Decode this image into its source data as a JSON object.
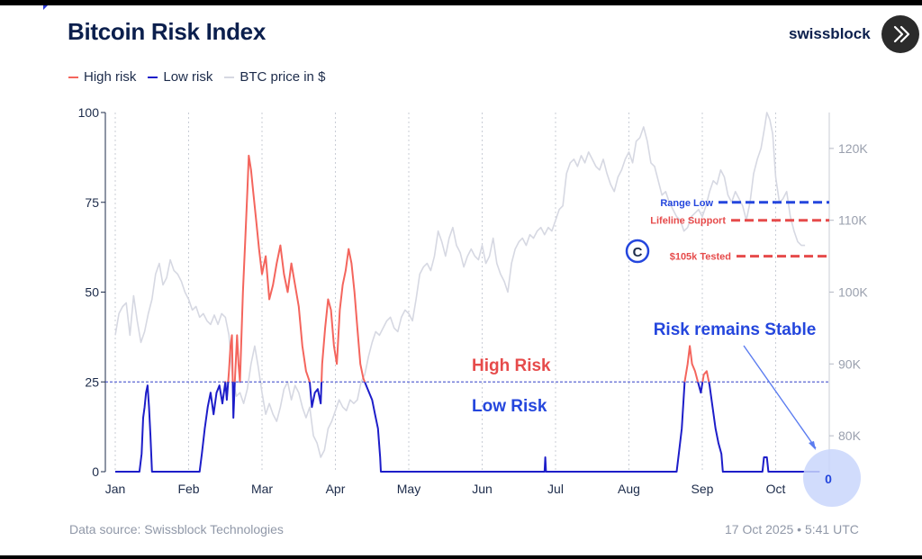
{
  "header": {
    "title": "Bitcoin Risk Index",
    "brand": "swissblock"
  },
  "footer": {
    "source": "Data source: Swissblock Technologies",
    "timestamp": "17 Oct 2025 • 5:41 UTC"
  },
  "colors": {
    "high": "#f4655d",
    "low": "#1d1dc9",
    "price": "#d6d8e2",
    "annotation_blue": "#2446dd",
    "annotation_red": "#e64b4b"
  },
  "chart_data": {
    "type": "line",
    "title": "Bitcoin Risk Index",
    "legend": [
      "High risk",
      "Low risk",
      "BTC price in $"
    ],
    "legend_position": "top-left",
    "x": {
      "ticks": [
        "Jan",
        "Feb",
        "Mar",
        "Apr",
        "May",
        "Jun",
        "Jul",
        "Aug",
        "Sep",
        "Oct"
      ],
      "range_months": [
        0,
        9.6
      ]
    },
    "y_left": {
      "ticks": [
        0,
        25,
        50,
        75,
        100
      ],
      "range": [
        0,
        100
      ]
    },
    "y_right": {
      "ticks": [
        "80K",
        "90K",
        "100K",
        "110K",
        "120K"
      ],
      "range": [
        75000,
        125000
      ]
    },
    "threshold": 25,
    "region_labels": {
      "high": "High Risk",
      "low": "Low Risk"
    },
    "price_levels": [
      {
        "label": "Range Low",
        "value": 112500,
        "color": "blue"
      },
      {
        "label": "Lifeline Support",
        "value": 110000,
        "color": "red"
      },
      {
        "label": "$105k Tested",
        "value": 105000,
        "color": "red"
      }
    ],
    "annotation": {
      "text": "Risk remains Stable",
      "value_label": "0"
    },
    "risk": [
      [
        0.0,
        0
      ],
      [
        0.33,
        0
      ],
      [
        0.36,
        5
      ],
      [
        0.38,
        15
      ],
      [
        0.4,
        18
      ],
      [
        0.42,
        22
      ],
      [
        0.44,
        24
      ],
      [
        0.46,
        18
      ],
      [
        0.48,
        10
      ],
      [
        0.5,
        0
      ],
      [
        0.95,
        0
      ],
      [
        1.15,
        0
      ],
      [
        1.18,
        5
      ],
      [
        1.22,
        12
      ],
      [
        1.26,
        18
      ],
      [
        1.3,
        22
      ],
      [
        1.34,
        16
      ],
      [
        1.38,
        22
      ],
      [
        1.42,
        24
      ],
      [
        1.46,
        19
      ],
      [
        1.5,
        25
      ],
      [
        1.52,
        20
      ],
      [
        1.55,
        28
      ],
      [
        1.57,
        35
      ],
      [
        1.59,
        38
      ],
      [
        1.61,
        15
      ],
      [
        1.63,
        25
      ],
      [
        1.66,
        38
      ],
      [
        1.68,
        30
      ],
      [
        1.7,
        25
      ],
      [
        1.74,
        50
      ],
      [
        1.77,
        64
      ],
      [
        1.8,
        78
      ],
      [
        1.82,
        88
      ],
      [
        1.85,
        84
      ],
      [
        1.88,
        78
      ],
      [
        1.92,
        70
      ],
      [
        1.96,
        62
      ],
      [
        2.0,
        55
      ],
      [
        2.05,
        60
      ],
      [
        2.1,
        48
      ],
      [
        2.15,
        52
      ],
      [
        2.2,
        58
      ],
      [
        2.25,
        63
      ],
      [
        2.3,
        55
      ],
      [
        2.35,
        50
      ],
      [
        2.4,
        58
      ],
      [
        2.45,
        52
      ],
      [
        2.5,
        46
      ],
      [
        2.55,
        35
      ],
      [
        2.6,
        28
      ],
      [
        2.65,
        25
      ],
      [
        2.68,
        18
      ],
      [
        2.72,
        22
      ],
      [
        2.76,
        23
      ],
      [
        2.8,
        19
      ],
      [
        2.82,
        30
      ],
      [
        2.86,
        40
      ],
      [
        2.9,
        48
      ],
      [
        2.94,
        45
      ],
      [
        2.98,
        35
      ],
      [
        3.02,
        30
      ],
      [
        3.06,
        45
      ],
      [
        3.1,
        52
      ],
      [
        3.14,
        56
      ],
      [
        3.18,
        62
      ],
      [
        3.22,
        58
      ],
      [
        3.26,
        50
      ],
      [
        3.3,
        40
      ],
      [
        3.34,
        30
      ],
      [
        3.38,
        26
      ],
      [
        3.42,
        24
      ],
      [
        3.46,
        22
      ],
      [
        3.5,
        20
      ],
      [
        3.54,
        16
      ],
      [
        3.58,
        12
      ],
      [
        3.61,
        4
      ],
      [
        3.62,
        0
      ],
      [
        5.85,
        0
      ],
      [
        5.86,
        4
      ],
      [
        5.87,
        0
      ],
      [
        7.65,
        0
      ],
      [
        7.68,
        5
      ],
      [
        7.72,
        12
      ],
      [
        7.76,
        25
      ],
      [
        7.8,
        30
      ],
      [
        7.83,
        35
      ],
      [
        7.86,
        30
      ],
      [
        7.9,
        28
      ],
      [
        7.94,
        25
      ],
      [
        7.98,
        22
      ],
      [
        8.02,
        27
      ],
      [
        8.06,
        28
      ],
      [
        8.1,
        24
      ],
      [
        8.14,
        18
      ],
      [
        8.18,
        12
      ],
      [
        8.22,
        8
      ],
      [
        8.26,
        5
      ],
      [
        8.28,
        0
      ],
      [
        8.82,
        0
      ],
      [
        8.84,
        4
      ],
      [
        8.88,
        4
      ],
      [
        8.9,
        0
      ],
      [
        9.6,
        0
      ]
    ],
    "btc_price": [
      [
        0.0,
        94000
      ],
      [
        0.05,
        97000
      ],
      [
        0.1,
        98000
      ],
      [
        0.15,
        98500
      ],
      [
        0.2,
        94000
      ],
      [
        0.25,
        99500
      ],
      [
        0.3,
        96000
      ],
      [
        0.35,
        93000
      ],
      [
        0.4,
        94500
      ],
      [
        0.45,
        97000
      ],
      [
        0.5,
        99000
      ],
      [
        0.55,
        102500
      ],
      [
        0.6,
        104000
      ],
      [
        0.65,
        101000
      ],
      [
        0.7,
        102000
      ],
      [
        0.75,
        104500
      ],
      [
        0.8,
        103000
      ],
      [
        0.85,
        102500
      ],
      [
        0.9,
        101500
      ],
      [
        0.95,
        100000
      ],
      [
        1.0,
        99000
      ],
      [
        1.05,
        97500
      ],
      [
        1.1,
        98000
      ],
      [
        1.15,
        96500
      ],
      [
        1.2,
        97000
      ],
      [
        1.25,
        96000
      ],
      [
        1.3,
        95500
      ],
      [
        1.35,
        96800
      ],
      [
        1.4,
        95500
      ],
      [
        1.45,
        97000
      ],
      [
        1.5,
        96500
      ],
      [
        1.55,
        94000
      ],
      [
        1.6,
        88000
      ],
      [
        1.65,
        85500
      ],
      [
        1.7,
        86000
      ],
      [
        1.75,
        84500
      ],
      [
        1.8,
        86500
      ],
      [
        1.85,
        90000
      ],
      [
        1.9,
        92500
      ],
      [
        1.95,
        89500
      ],
      [
        2.0,
        86000
      ],
      [
        2.05,
        83000
      ],
      [
        2.1,
        84500
      ],
      [
        2.15,
        83000
      ],
      [
        2.2,
        82000
      ],
      [
        2.25,
        84000
      ],
      [
        2.3,
        86500
      ],
      [
        2.35,
        87500
      ],
      [
        2.4,
        85000
      ],
      [
        2.45,
        87000
      ],
      [
        2.5,
        86000
      ],
      [
        2.55,
        84000
      ],
      [
        2.6,
        82500
      ],
      [
        2.65,
        84000
      ],
      [
        2.7,
        80000
      ],
      [
        2.75,
        79000
      ],
      [
        2.8,
        77000
      ],
      [
        2.85,
        78000
      ],
      [
        2.9,
        81000
      ],
      [
        2.95,
        82000
      ],
      [
        3.0,
        83500
      ],
      [
        3.05,
        85000
      ],
      [
        3.1,
        84000
      ],
      [
        3.15,
        83500
      ],
      [
        3.2,
        85000
      ],
      [
        3.25,
        84500
      ],
      [
        3.3,
        85000
      ],
      [
        3.35,
        87500
      ],
      [
        3.4,
        88500
      ],
      [
        3.45,
        91000
      ],
      [
        3.5,
        93000
      ],
      [
        3.55,
        94500
      ],
      [
        3.6,
        94000
      ],
      [
        3.65,
        95000
      ],
      [
        3.7,
        96000
      ],
      [
        3.75,
        96500
      ],
      [
        3.8,
        95000
      ],
      [
        3.85,
        94500
      ],
      [
        3.9,
        96500
      ],
      [
        3.95,
        97500
      ],
      [
        4.0,
        97000
      ],
      [
        4.05,
        96000
      ],
      [
        4.1,
        99000
      ],
      [
        4.15,
        102500
      ],
      [
        4.2,
        103500
      ],
      [
        4.25,
        104000
      ],
      [
        4.3,
        103000
      ],
      [
        4.35,
        105000
      ],
      [
        4.4,
        108500
      ],
      [
        4.45,
        107000
      ],
      [
        4.5,
        105000
      ],
      [
        4.55,
        107500
      ],
      [
        4.6,
        109000
      ],
      [
        4.65,
        106500
      ],
      [
        4.7,
        105500
      ],
      [
        4.75,
        103500
      ],
      [
        4.8,
        105000
      ],
      [
        4.85,
        106000
      ],
      [
        4.9,
        105000
      ],
      [
        4.95,
        104500
      ],
      [
        5.0,
        106500
      ],
      [
        5.05,
        104000
      ],
      [
        5.1,
        105000
      ],
      [
        5.15,
        107500
      ],
      [
        5.2,
        104000
      ],
      [
        5.25,
        102500
      ],
      [
        5.3,
        101500
      ],
      [
        5.35,
        100000
      ],
      [
        5.4,
        104000
      ],
      [
        5.45,
        106000
      ],
      [
        5.5,
        107000
      ],
      [
        5.55,
        107500
      ],
      [
        5.6,
        106500
      ],
      [
        5.65,
        108000
      ],
      [
        5.7,
        107500
      ],
      [
        5.75,
        108500
      ],
      [
        5.8,
        109000
      ],
      [
        5.85,
        108000
      ],
      [
        5.9,
        109000
      ],
      [
        5.95,
        108500
      ],
      [
        6.0,
        110000
      ],
      [
        6.05,
        111500
      ],
      [
        6.1,
        112000
      ],
      [
        6.15,
        116500
      ],
      [
        6.2,
        118000
      ],
      [
        6.25,
        118500
      ],
      [
        6.3,
        117500
      ],
      [
        6.35,
        119000
      ],
      [
        6.4,
        118000
      ],
      [
        6.45,
        119500
      ],
      [
        6.5,
        118500
      ],
      [
        6.55,
        117500
      ],
      [
        6.6,
        117000
      ],
      [
        6.65,
        118500
      ],
      [
        6.7,
        116500
      ],
      [
        6.75,
        115000
      ],
      [
        6.8,
        114000
      ],
      [
        6.85,
        116000
      ],
      [
        6.9,
        117000
      ],
      [
        6.95,
        118500
      ],
      [
        7.0,
        119500
      ],
      [
        7.05,
        118000
      ],
      [
        7.1,
        121000
      ],
      [
        7.15,
        121500
      ],
      [
        7.2,
        123000
      ],
      [
        7.25,
        121000
      ],
      [
        7.3,
        118000
      ],
      [
        7.35,
        117500
      ],
      [
        7.4,
        115500
      ],
      [
        7.45,
        113500
      ],
      [
        7.5,
        114000
      ],
      [
        7.55,
        112500
      ],
      [
        7.6,
        111500
      ],
      [
        7.65,
        110500
      ],
      [
        7.7,
        110000
      ],
      [
        7.75,
        108500
      ],
      [
        7.8,
        109000
      ],
      [
        7.85,
        110500
      ],
      [
        7.9,
        111000
      ],
      [
        7.95,
        111500
      ],
      [
        8.0,
        110500
      ],
      [
        8.05,
        112000
      ],
      [
        8.1,
        114000
      ],
      [
        8.15,
        115500
      ],
      [
        8.2,
        115000
      ],
      [
        8.25,
        117000
      ],
      [
        8.3,
        116000
      ],
      [
        8.35,
        113500
      ],
      [
        8.4,
        112500
      ],
      [
        8.45,
        114000
      ],
      [
        8.5,
        113000
      ],
      [
        8.55,
        112000
      ],
      [
        8.6,
        110000
      ],
      [
        8.65,
        112500
      ],
      [
        8.7,
        116500
      ],
      [
        8.75,
        118500
      ],
      [
        8.8,
        120000
      ],
      [
        8.85,
        123000
      ],
      [
        8.88,
        125000
      ],
      [
        8.92,
        124000
      ],
      [
        8.96,
        122000
      ],
      [
        9.0,
        116000
      ],
      [
        9.05,
        112500
      ],
      [
        9.1,
        113000
      ],
      [
        9.15,
        114000
      ],
      [
        9.2,
        110500
      ],
      [
        9.25,
        108500
      ],
      [
        9.3,
        107000
      ],
      [
        9.35,
        106500
      ],
      [
        9.4,
        106500
      ]
    ]
  }
}
